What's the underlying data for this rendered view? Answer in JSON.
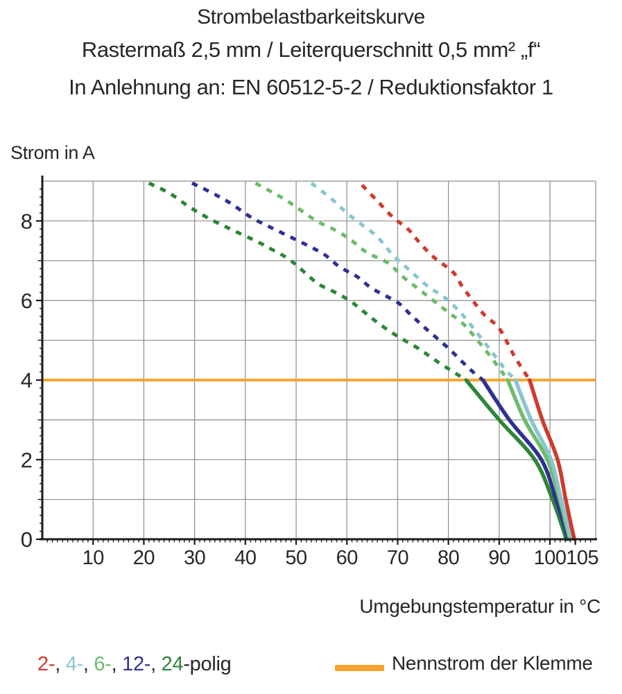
{
  "title": {
    "line1": "Strombelastbarkeitskurve",
    "line2": "Rastermaß 2,5 mm / Leiterquerschnitt 0,5 mm² „f“",
    "line3": "In Anlehnung an: EN 60512-5-2 / Reduktionsfaktor 1"
  },
  "chart_data": {
    "type": "line",
    "title": "Strombelastbarkeitskurve",
    "ylabel": "Strom in A",
    "xlabel": "Umgebungstemperatur in °C",
    "xlim": [
      0,
      109
    ],
    "ylim": [
      0,
      9
    ],
    "grid": true,
    "x_gridline_step": 10,
    "y_gridline_step": 1,
    "x_major_ticks": [
      {
        "v": 10,
        "label": "10"
      },
      {
        "v": 20,
        "label": "20"
      },
      {
        "v": 30,
        "label": "30"
      },
      {
        "v": 40,
        "label": "40"
      },
      {
        "v": 50,
        "label": "50"
      },
      {
        "v": 60,
        "label": "60"
      },
      {
        "v": 70,
        "label": "70"
      },
      {
        "v": 80,
        "label": "80"
      },
      {
        "v": 90,
        "label": "90"
      },
      {
        "v": 100,
        "label": "100"
      },
      {
        "v": 105,
        "label": "105",
        "dx": 10,
        "grid": false
      }
    ],
    "y_major_ticks": [
      {
        "v": 0,
        "label": "0"
      },
      {
        "v": 2,
        "label": "2"
      },
      {
        "v": 4,
        "label": "4"
      },
      {
        "v": 6,
        "label": "6"
      },
      {
        "v": 8,
        "label": "8"
      }
    ],
    "nominal_current": {
      "value": 4,
      "color": "#F5A42C",
      "label": "Nennstrom der Klemme"
    },
    "series": [
      {
        "name": "24-polig",
        "color": "#2E8539",
        "dashed": [
          [
            21,
            8.95
          ],
          [
            25,
            8.7
          ],
          [
            29,
            8.35
          ],
          [
            33,
            8.05
          ],
          [
            37,
            7.8
          ],
          [
            42,
            7.5
          ],
          [
            45,
            7.3
          ],
          [
            49,
            7.0
          ],
          [
            54,
            6.45
          ],
          [
            57,
            6.25
          ],
          [
            60.5,
            6.0
          ],
          [
            63.5,
            5.7
          ],
          [
            66.5,
            5.4
          ],
          [
            70,
            5.1
          ],
          [
            74,
            4.8
          ],
          [
            78,
            4.45
          ],
          [
            83.5,
            4.0
          ]
        ],
        "solid": [
          [
            83.5,
            4.0
          ],
          [
            90,
            3.0
          ],
          [
            97,
            2.0
          ],
          [
            100.5,
            1.0
          ],
          [
            102.2,
            0.4
          ],
          [
            103.2,
            0
          ]
        ]
      },
      {
        "name": "12-polig",
        "color": "#2E3192",
        "dashed": [
          [
            29.5,
            8.95
          ],
          [
            33.5,
            8.7
          ],
          [
            37,
            8.45
          ],
          [
            41,
            8.1
          ],
          [
            44,
            7.9
          ],
          [
            48,
            7.65
          ],
          [
            55,
            7.2
          ],
          [
            58.5,
            6.85
          ],
          [
            62,
            6.6
          ],
          [
            65,
            6.3
          ],
          [
            70,
            5.95
          ],
          [
            72.5,
            5.65
          ],
          [
            75.5,
            5.3
          ],
          [
            80,
            4.8
          ],
          [
            84,
            4.3
          ],
          [
            86.8,
            4.0
          ]
        ],
        "solid": [
          [
            86.8,
            4.0
          ],
          [
            92,
            3.0
          ],
          [
            98.3,
            2.0
          ],
          [
            101.2,
            1.0
          ],
          [
            102.7,
            0.4
          ],
          [
            103.6,
            0
          ]
        ]
      },
      {
        "name": "6-polig",
        "color": "#6CBC6B",
        "dashed": [
          [
            42,
            8.95
          ],
          [
            47,
            8.6
          ],
          [
            50,
            8.35
          ],
          [
            54,
            8.0
          ],
          [
            58,
            7.75
          ],
          [
            61,
            7.5
          ],
          [
            64,
            7.2
          ],
          [
            68,
            6.95
          ],
          [
            71,
            6.6
          ],
          [
            74,
            6.3
          ],
          [
            77,
            6.0
          ],
          [
            80,
            5.7
          ],
          [
            83,
            5.4
          ],
          [
            87,
            4.8
          ],
          [
            90,
            4.3
          ],
          [
            91.7,
            4.0
          ]
        ],
        "solid": [
          [
            91.7,
            4.0
          ],
          [
            95,
            3.0
          ],
          [
            99.5,
            2.0
          ],
          [
            101.9,
            1.0
          ],
          [
            103.1,
            0.4
          ],
          [
            103.9,
            0
          ]
        ]
      },
      {
        "name": "4-polig",
        "color": "#89C6CD",
        "dashed": [
          [
            53,
            8.95
          ],
          [
            57,
            8.55
          ],
          [
            60,
            8.2
          ],
          [
            63,
            7.9
          ],
          [
            66,
            7.6
          ],
          [
            69,
            7.15
          ],
          [
            72,
            6.8
          ],
          [
            76,
            6.35
          ],
          [
            79,
            6.1
          ],
          [
            82,
            5.75
          ],
          [
            84,
            5.45
          ],
          [
            88,
            4.8
          ],
          [
            91,
            4.3
          ],
          [
            93.2,
            4.0
          ]
        ],
        "solid": [
          [
            93.2,
            4.0
          ],
          [
            96.3,
            3.0
          ],
          [
            100.2,
            2.0
          ],
          [
            102.2,
            1.0
          ],
          [
            103.4,
            0.4
          ],
          [
            104.1,
            0
          ]
        ]
      },
      {
        "name": "2-polig",
        "color": "#CE3A2D",
        "dashed": [
          [
            63,
            8.9
          ],
          [
            66,
            8.5
          ],
          [
            69,
            8.1
          ],
          [
            72,
            7.8
          ],
          [
            74,
            7.5
          ],
          [
            77,
            7.1
          ],
          [
            81,
            6.7
          ],
          [
            83,
            6.3
          ],
          [
            87,
            5.65
          ],
          [
            90,
            5.3
          ],
          [
            93,
            4.6
          ],
          [
            96,
            4.0
          ]
        ],
        "solid": [
          [
            96,
            4.0
          ],
          [
            98.5,
            3.0
          ],
          [
            101.5,
            2.0
          ],
          [
            103.1,
            1.0
          ],
          [
            104.1,
            0.4
          ],
          [
            104.8,
            0
          ]
        ]
      }
    ]
  },
  "legend": {
    "poles_parts": [
      {
        "text": "2-",
        "color": "#CE3A2D"
      },
      {
        "text": ", ",
        "color": "#26262B"
      },
      {
        "text": "4-",
        "color": "#89C6CD"
      },
      {
        "text": ", ",
        "color": "#26262B"
      },
      {
        "text": "6-",
        "color": "#6CBC6B"
      },
      {
        "text": ", ",
        "color": "#26262B"
      },
      {
        "text": "12-",
        "color": "#2E3192"
      },
      {
        "text": ", ",
        "color": "#26262B"
      },
      {
        "text": "24",
        "color": "#2E8539"
      },
      {
        "text": "-polig",
        "color": "#26262B"
      }
    ],
    "nennstrom_label": "Nennstrom der Klemme",
    "nennstrom_color": "#F5A42C"
  }
}
